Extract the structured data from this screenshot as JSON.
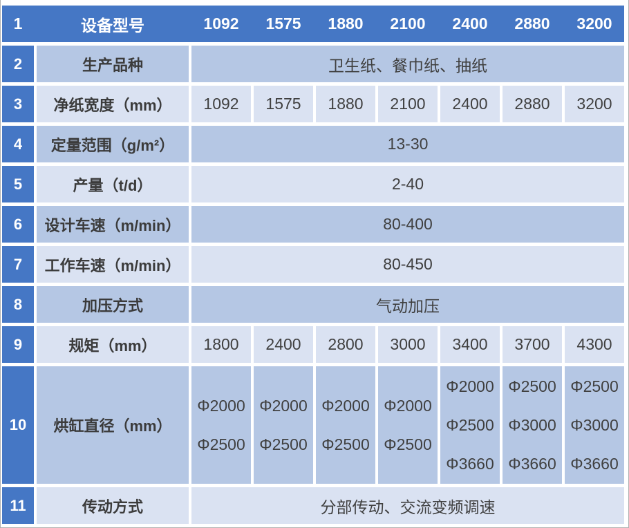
{
  "colors": {
    "header_blue": "#4577C5",
    "row_medium": "#B5C7E4",
    "row_light": "#DAE2F2",
    "header_text": "#FFFFFF",
    "body_text": "#404040",
    "outer_border": "#B0B0B0"
  },
  "table": {
    "header": {
      "row_no": "1",
      "label": "设备型号",
      "models": [
        "1092",
        "1575",
        "1880",
        "2100",
        "2400",
        "2880",
        "3200"
      ]
    },
    "rows": [
      {
        "num": "2",
        "label": "生产品种",
        "value": "卫生纸、餐巾纸、抽纸"
      },
      {
        "num": "3",
        "label": "净纸宽度（mm）",
        "values": [
          "1092",
          "1575",
          "1880",
          "2100",
          "2400",
          "2880",
          "3200"
        ]
      },
      {
        "num": "4",
        "label": "定量范围（g/m²）",
        "value": "13-30"
      },
      {
        "num": "5",
        "label": "产量（t/d）",
        "value": "2-40"
      },
      {
        "num": "6",
        "label": "设计车速（m/min）",
        "value": "80-400"
      },
      {
        "num": "7",
        "label": "工作车速（m/min）",
        "value": "80-450"
      },
      {
        "num": "8",
        "label": "加压方式",
        "value": "气动加压"
      },
      {
        "num": "9",
        "label": "规矩（mm）",
        "values": [
          "1800",
          "2400",
          "2800",
          "3000",
          "3400",
          "3700",
          "4300"
        ]
      },
      {
        "num": "10",
        "label": "烘缸直径（mm）",
        "values": [
          [
            "Φ2000",
            "Φ2500"
          ],
          [
            "Φ2000",
            "Φ2500"
          ],
          [
            "Φ2000",
            "Φ2500"
          ],
          [
            "Φ2000",
            "Φ2500"
          ],
          [
            "Φ2000",
            "Φ2500",
            "Φ3660"
          ],
          [
            "Φ2500",
            "Φ3000",
            "Φ3660"
          ],
          [
            "Φ2500",
            "Φ3000",
            "Φ3660"
          ]
        ]
      },
      {
        "num": "11",
        "label": "传动方式",
        "value": "分部传动、交流变频调速"
      }
    ]
  }
}
